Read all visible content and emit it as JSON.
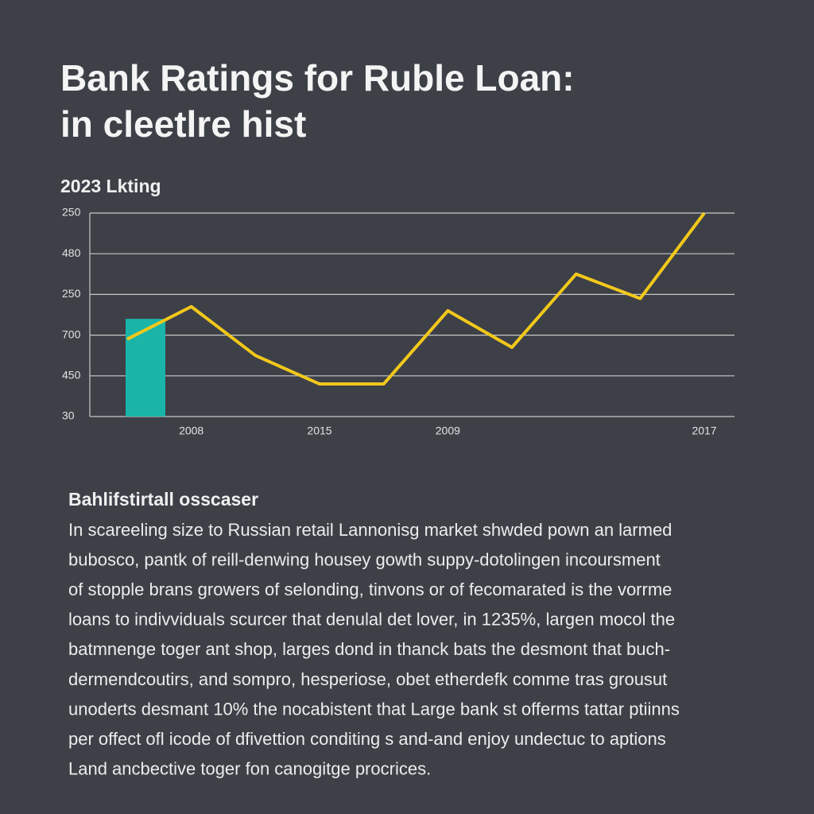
{
  "chart_data": {
    "type": "line",
    "title_lines": [
      "Bank Ratings for Ruble Loan:",
      "in cleetlre hist"
    ],
    "subtitle": "2023 Lkting",
    "categories": [
      null,
      "2008",
      null,
      "2015",
      null,
      "2009",
      null,
      null,
      null,
      "2017"
    ],
    "series": [
      {
        "type": "bar",
        "color": "#1ab5a8",
        "values": [
          2.4,
          null,
          null,
          null,
          null,
          null,
          null,
          null,
          null,
          null
        ]
      },
      {
        "type": "line",
        "color": "#f2c81b",
        "values": [
          1.9,
          2.7,
          1.5,
          0.8,
          0.8,
          2.6,
          1.7,
          3.5,
          2.9,
          5.0
        ]
      }
    ],
    "ylim": [
      0,
      5
    ],
    "yticks": [
      {
        "value": 0,
        "label": "30"
      },
      {
        "value": 1,
        "label": "450"
      },
      {
        "value": 2,
        "label": "700"
      },
      {
        "value": 3,
        "label": "250"
      },
      {
        "value": 4,
        "label": "480"
      },
      {
        "value": 5,
        "label": "250"
      }
    ],
    "grid": true
  },
  "text_section": {
    "heading": "Bahlifstirtall osscaser",
    "lines": [
      "In scareeling size to Russian retail Lannonisg market shwded pown an larmed",
      "bubosco, pantk of reill-denwing housey gowth suppy-dotolingen incoursment",
      "of stopple brans growers of selonding, tinvons or of fecomarated is the vorrme",
      "loans to indivviduals scurcer that denulal det lover, in 1235%, largen mocol the",
      "batmnenge toger ant shop, larges dond in thanck bats the desmont that buch-",
      "dermendcoutirs, and sompro, hesperiose, obet etherdefk comme tras grousut",
      "unoderts desmant 10% the nocabistent that Large bank st offerms tattar ptiinns",
      "per offect ofl icode of dfivettion conditing s and-and enjoy undectuc to aptions",
      "Land ancbective toger fon canogitge procrices."
    ]
  }
}
